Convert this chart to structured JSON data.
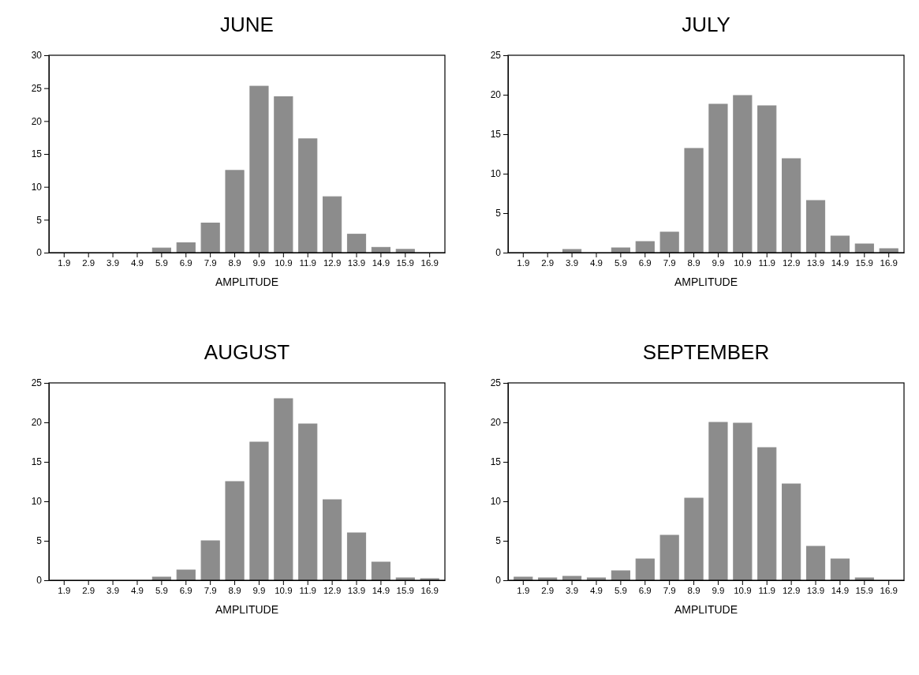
{
  "chart_data": [
    {
      "type": "bar",
      "title": "JUNE",
      "xlabel": "AMPLITUDE",
      "categories": [
        "1.9",
        "2.9",
        "3.9",
        "4.9",
        "5.9",
        "6.9",
        "7.9",
        "8.9",
        "9.9",
        "10.9",
        "11.9",
        "12.9",
        "13.9",
        "14.9",
        "15.9",
        "16.9"
      ],
      "values": [
        0,
        0,
        0,
        0,
        0.7,
        1.5,
        4.5,
        12.5,
        25.3,
        23.7,
        17.3,
        8.5,
        2.8,
        0.8,
        0.5,
        0
      ],
      "color": "#8c8c8c",
      "ylim": [
        0,
        30
      ],
      "yticks": [
        0,
        5,
        10,
        15,
        20,
        25,
        30
      ],
      "grid": false
    },
    {
      "type": "bar",
      "title": "JULY",
      "xlabel": "AMPLITUDE",
      "categories": [
        "1.9",
        "2.9",
        "3.9",
        "4.9",
        "5.9",
        "6.9",
        "7.9",
        "8.9",
        "9.9",
        "10.9",
        "11.9",
        "12.9",
        "13.9",
        "14.9",
        "15.9",
        "16.9"
      ],
      "values": [
        0,
        0,
        0.4,
        0,
        0.6,
        1.4,
        2.6,
        13.2,
        18.8,
        19.9,
        18.6,
        11.9,
        6.6,
        2.1,
        1.1,
        0.5
      ],
      "color": "#8c8c8c",
      "ylim": [
        0,
        25
      ],
      "yticks": [
        0,
        5,
        10,
        15,
        20,
        25
      ],
      "grid": false
    },
    {
      "type": "bar",
      "title": "AUGUST",
      "xlabel": "AMPLITUDE",
      "categories": [
        "1.9",
        "2.9",
        "3.9",
        "4.9",
        "5.9",
        "6.9",
        "7.9",
        "8.9",
        "9.9",
        "10.9",
        "11.9",
        "12.9",
        "13.9",
        "14.9",
        "15.9",
        "16.9"
      ],
      "values": [
        0,
        0,
        0,
        0,
        0.4,
        1.3,
        5,
        12.5,
        17.5,
        23,
        19.8,
        10.2,
        6,
        2.3,
        0.3,
        0.2
      ],
      "color": "#8c8c8c",
      "ylim": [
        0,
        25
      ],
      "yticks": [
        0,
        5,
        10,
        15,
        20,
        25
      ],
      "grid": false
    },
    {
      "type": "bar",
      "title": "SEPTEMBER",
      "xlabel": "AMPLITUDE",
      "categories": [
        "1.9",
        "2.9",
        "3.9",
        "4.9",
        "5.9",
        "6.9",
        "7.9",
        "8.9",
        "9.9",
        "10.9",
        "11.9",
        "12.9",
        "13.9",
        "14.9",
        "15.9",
        "16.9"
      ],
      "values": [
        0.4,
        0.3,
        0.5,
        0.3,
        1.2,
        2.7,
        5.7,
        10.4,
        20,
        19.9,
        16.8,
        12.2,
        4.3,
        2.7,
        0.3,
        0
      ],
      "color": "#8c8c8c",
      "ylim": [
        0,
        25
      ],
      "yticks": [
        0,
        5,
        10,
        15,
        20,
        25
      ],
      "grid": false
    }
  ]
}
